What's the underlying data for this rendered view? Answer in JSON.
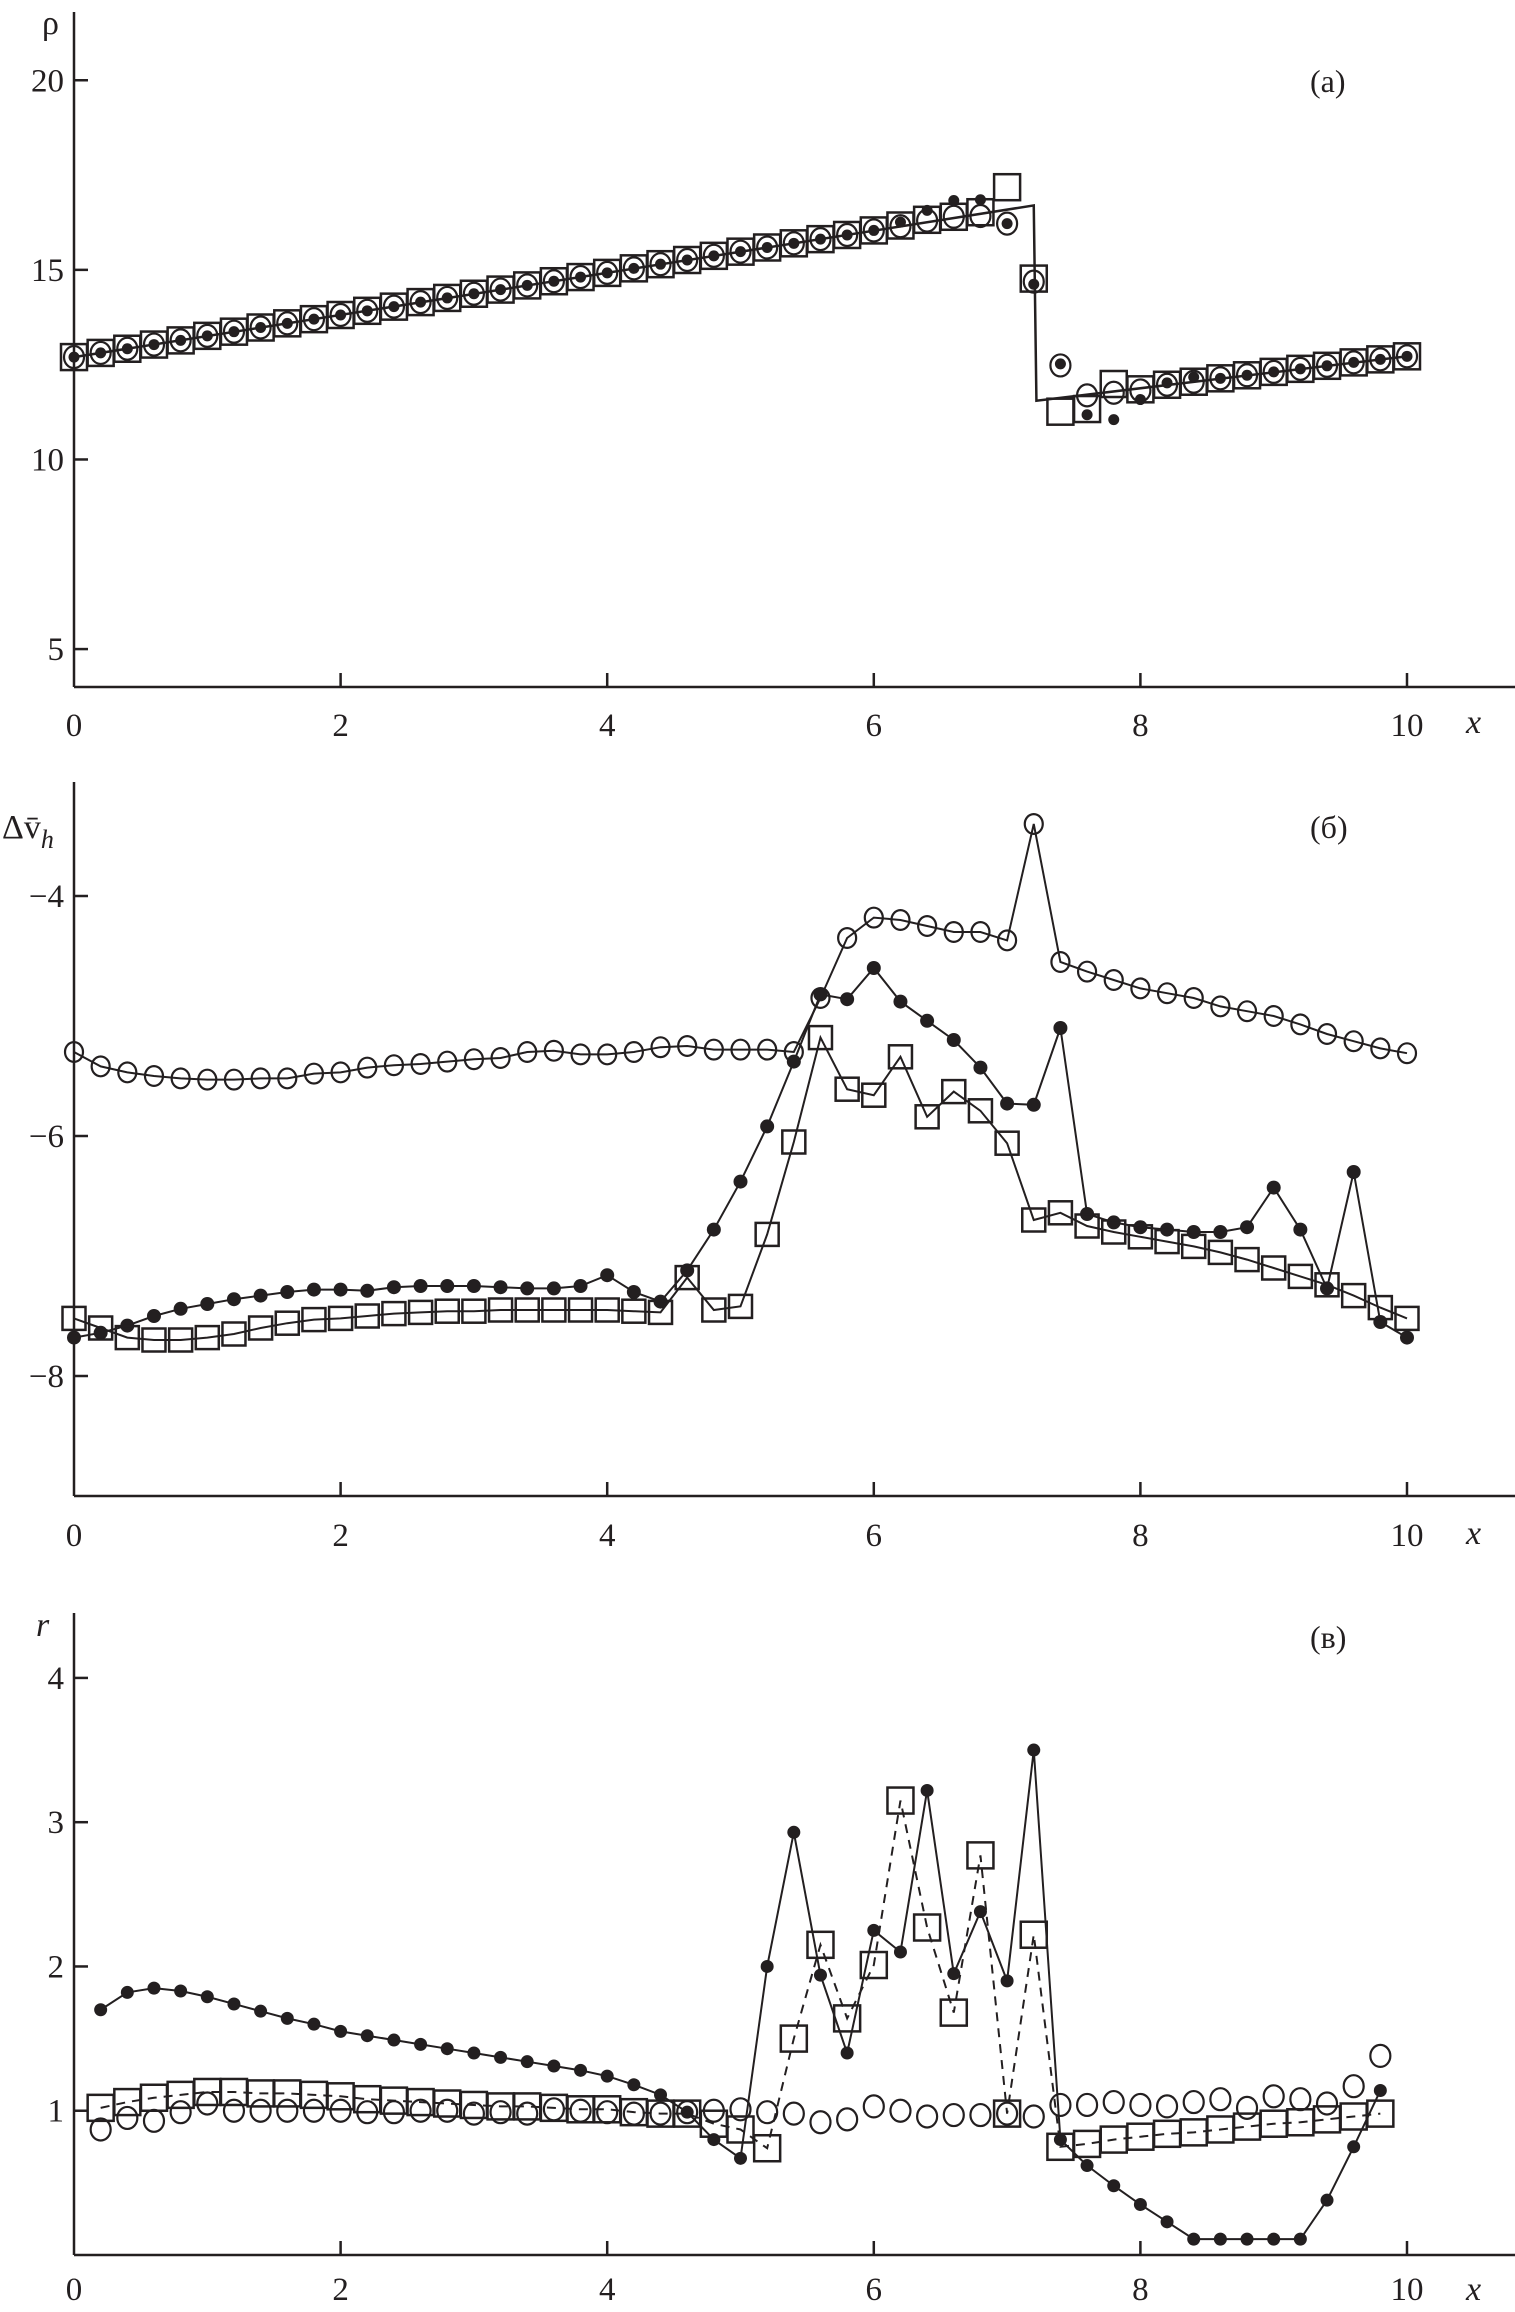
{
  "chart_data": [
    {
      "type": "line",
      "panel_label": "(а)",
      "ylabel": "ρ",
      "xlabel": "x",
      "xlim": [
        0,
        10
      ],
      "ylim": [
        4,
        21.8
      ],
      "xticks": [
        "0",
        "2",
        "4",
        "6",
        "8",
        "10"
      ],
      "xtick_values": [
        0,
        2,
        4,
        6,
        8,
        10
      ],
      "yticks": [
        "5",
        "10",
        "15",
        "20"
      ],
      "ytick_values": [
        5,
        10,
        15,
        20
      ],
      "grid": false,
      "line": {
        "x": [
          0,
          7.2,
          7.22,
          10
        ],
        "y": [
          12.7,
          16.7,
          11.55,
          12.72
        ],
        "style": "solid"
      },
      "x": [
        0,
        0.2,
        0.4,
        0.6,
        0.8,
        1,
        1.2,
        1.4,
        1.6,
        1.8,
        2,
        2.2,
        2.4,
        2.6,
        2.8,
        3,
        3.2,
        3.4,
        3.6,
        3.8,
        4,
        4.2,
        4.4,
        4.6,
        4.8,
        5,
        5.2,
        5.4,
        5.6,
        5.8,
        6,
        6.2,
        6.4,
        6.6,
        6.8,
        7,
        7.2,
        7.4,
        7.6,
        7.8,
        8,
        8.2,
        8.4,
        8.6,
        8.8,
        9,
        9.2,
        9.4,
        9.6,
        9.8,
        10
      ],
      "series": [
        {
          "name": "squares",
          "marker": "square",
          "line": "none",
          "values": [
            12.7,
            12.81,
            12.92,
            13.03,
            13.14,
            13.26,
            13.37,
            13.48,
            13.59,
            13.7,
            13.81,
            13.92,
            14.03,
            14.15,
            14.26,
            14.37,
            14.48,
            14.59,
            14.7,
            14.81,
            14.92,
            15.04,
            15.15,
            15.26,
            15.37,
            15.48,
            15.59,
            15.7,
            15.81,
            15.92,
            16.04,
            16.17,
            16.32,
            16.4,
            16.52,
            17.18,
            14.77,
            11.26,
            11.33,
            11.99,
            11.85,
            11.97,
            12.05,
            12.14,
            12.22,
            12.31,
            12.39,
            12.47,
            12.56,
            12.64,
            12.72
          ]
        },
        {
          "name": "circles",
          "marker": "circle",
          "line": "none",
          "values": [
            12.7,
            12.81,
            12.92,
            13.03,
            13.14,
            13.26,
            13.37,
            13.48,
            13.59,
            13.7,
            13.81,
            13.92,
            14.03,
            14.15,
            14.26,
            14.37,
            14.48,
            14.59,
            14.7,
            14.81,
            14.92,
            15.04,
            15.15,
            15.26,
            15.37,
            15.48,
            15.59,
            15.7,
            15.81,
            15.92,
            16.04,
            16.15,
            16.3,
            16.4,
            16.42,
            16.22,
            14.69,
            12.48,
            11.69,
            11.76,
            11.82,
            11.97,
            12.05,
            12.14,
            12.22,
            12.31,
            12.39,
            12.47,
            12.56,
            12.64,
            12.72
          ]
        },
        {
          "name": "dots",
          "marker": "dot",
          "line": "none",
          "values": [
            12.7,
            12.81,
            12.92,
            13.03,
            13.14,
            13.26,
            13.37,
            13.48,
            13.59,
            13.7,
            13.81,
            13.92,
            14.03,
            14.15,
            14.26,
            14.37,
            14.48,
            14.59,
            14.7,
            14.81,
            14.92,
            15.04,
            15.15,
            15.26,
            15.37,
            15.48,
            15.59,
            15.7,
            15.81,
            15.92,
            16.04,
            16.26,
            16.57,
            16.83,
            16.85,
            16.22,
            14.62,
            12.52,
            11.18,
            11.05,
            11.58,
            12.02,
            12.17,
            12.14,
            12.22,
            12.31,
            12.39,
            12.47,
            12.56,
            12.64,
            12.72
          ]
        }
      ]
    },
    {
      "type": "line",
      "panel_label": "(б)",
      "ylabel": "Δv̄",
      "ylabel_sub": "h",
      "xlabel": "x",
      "xlim": [
        0,
        10
      ],
      "ylim": [
        -9,
        -3.05
      ],
      "xticks": [
        "0",
        "2",
        "4",
        "6",
        "8",
        "10"
      ],
      "xtick_values": [
        0,
        2,
        4,
        6,
        8,
        10
      ],
      "yticks": [
        "−8",
        "−6",
        "−4"
      ],
      "ytick_values": [
        -8,
        -6,
        -4
      ],
      "grid": false,
      "x": [
        0,
        0.2,
        0.4,
        0.6,
        0.8,
        1,
        1.2,
        1.4,
        1.6,
        1.8,
        2,
        2.2,
        2.4,
        2.6,
        2.8,
        3,
        3.2,
        3.4,
        3.6,
        3.8,
        4,
        4.2,
        4.4,
        4.6,
        4.8,
        5,
        5.2,
        5.4,
        5.6,
        5.8,
        6,
        6.2,
        6.4,
        6.6,
        6.8,
        7,
        7.2,
        7.4,
        7.6,
        7.8,
        8,
        8.2,
        8.4,
        8.6,
        8.8,
        9,
        9.2,
        9.4,
        9.6,
        9.8,
        10
      ],
      "series": [
        {
          "name": "circles",
          "marker": "circle",
          "line": "solid",
          "values": [
            -5.3,
            -5.42,
            -5.47,
            -5.5,
            -5.52,
            -5.53,
            -5.53,
            -5.52,
            -5.52,
            -5.48,
            -5.47,
            -5.43,
            -5.41,
            -5.4,
            -5.38,
            -5.36,
            -5.35,
            -5.3,
            -5.29,
            -5.32,
            -5.32,
            -5.3,
            -5.26,
            -5.25,
            -5.28,
            -5.28,
            -5.28,
            -5.3,
            -4.85,
            -4.35,
            -4.18,
            -4.2,
            -4.25,
            -4.3,
            -4.3,
            -4.37,
            -3.4,
            -4.55,
            -4.63,
            -4.7,
            -4.77,
            -4.81,
            -4.85,
            -4.92,
            -4.96,
            -5.0,
            -5.07,
            -5.15,
            -5.21,
            -5.27,
            -5.31
          ]
        },
        {
          "name": "dots",
          "marker": "dot",
          "line": "solid",
          "values": [
            -7.68,
            -7.64,
            -7.58,
            -7.5,
            -7.44,
            -7.4,
            -7.36,
            -7.33,
            -7.3,
            -7.28,
            -7.28,
            -7.29,
            -7.26,
            -7.25,
            -7.25,
            -7.25,
            -7.26,
            -7.27,
            -7.27,
            -7.25,
            -7.16,
            -7.3,
            -7.38,
            -7.12,
            -6.78,
            -6.38,
            -5.92,
            -5.38,
            -4.82,
            -4.86,
            -4.6,
            -4.88,
            -5.04,
            -5.2,
            -5.43,
            -5.73,
            -5.74,
            -5.1,
            -6.65,
            -6.72,
            -6.76,
            -6.78,
            -6.8,
            -6.8,
            -6.76,
            -6.43,
            -6.78,
            -7.27,
            -6.3,
            -7.55,
            -7.68
          ]
        },
        {
          "name": "squares",
          "marker": "square",
          "line": "solid",
          "values": [
            -7.52,
            -7.6,
            -7.68,
            -7.7,
            -7.7,
            -7.68,
            -7.65,
            -7.6,
            -7.56,
            -7.53,
            -7.52,
            -7.5,
            -7.48,
            -7.47,
            -7.46,
            -7.46,
            -7.45,
            -7.45,
            -7.45,
            -7.45,
            -7.45,
            -7.46,
            -7.47,
            -7.18,
            -7.45,
            -7.42,
            -6.82,
            -6.05,
            -5.18,
            -5.61,
            -5.66,
            -5.34,
            -5.84,
            -5.63,
            -5.79,
            -6.06,
            -6.7,
            -6.64,
            -6.75,
            -6.8,
            -6.84,
            -6.88,
            -6.92,
            -6.97,
            -7.03,
            -7.1,
            -7.17,
            -7.24,
            -7.33,
            -7.43,
            -7.52
          ]
        }
      ]
    },
    {
      "type": "line",
      "panel_label": "(в)",
      "ylabel": "r",
      "xlabel": "x",
      "xlim": [
        0,
        10
      ],
      "ylim": [
        0,
        4.45
      ],
      "xticks": [
        "0",
        "2",
        "4",
        "6",
        "8",
        "10"
      ],
      "xtick_values": [
        0,
        2,
        4,
        6,
        8,
        10
      ],
      "yticks": [
        "1",
        "2",
        "3",
        "4"
      ],
      "ytick_values": [
        1,
        2,
        3,
        4
      ],
      "grid": false,
      "x": [
        0.2,
        0.4,
        0.6,
        0.8,
        1,
        1.2,
        1.4,
        1.6,
        1.8,
        2,
        2.2,
        2.4,
        2.6,
        2.8,
        3,
        3.2,
        3.4,
        3.6,
        3.8,
        4,
        4.2,
        4.4,
        4.6,
        4.8,
        5,
        5.2,
        5.4,
        5.6,
        5.8,
        6,
        6.2,
        6.4,
        6.6,
        6.8,
        7,
        7.2,
        7.4,
        7.6,
        7.8,
        8,
        8.2,
        8.4,
        8.6,
        8.8,
        9,
        9.2,
        9.4,
        9.6,
        9.8
      ],
      "series": [
        {
          "name": "circles",
          "marker": "circle",
          "line": "none",
          "values": [
            0.87,
            0.95,
            0.93,
            0.99,
            1.05,
            1.0,
            1.0,
            1.0,
            1.0,
            1.0,
            0.99,
            0.99,
            1.0,
            1.0,
            0.98,
            0.99,
            0.98,
            1.01,
            1.0,
            0.99,
            0.98,
            0.98,
            0.99,
            1.0,
            1.01,
            0.99,
            0.98,
            0.92,
            0.94,
            1.03,
            1.0,
            0.96,
            0.97,
            0.97,
            0.98,
            0.96,
            1.04,
            1.04,
            1.06,
            1.04,
            1.03,
            1.06,
            1.08,
            1.02,
            1.1,
            1.08,
            1.05,
            1.17,
            1.38
          ]
        },
        {
          "name": "dots",
          "marker": "dot",
          "line": "solid",
          "values": [
            1.7,
            1.82,
            1.85,
            1.83,
            1.79,
            1.74,
            1.69,
            1.64,
            1.6,
            1.55,
            1.52,
            1.49,
            1.46,
            1.43,
            1.4,
            1.37,
            1.34,
            1.31,
            1.28,
            1.24,
            1.18,
            1.11,
            0.99,
            0.8,
            0.67,
            2.0,
            2.93,
            1.94,
            1.4,
            2.25,
            2.1,
            3.22,
            1.95,
            2.38,
            1.9,
            3.5,
            0.8,
            0.62,
            0.48,
            0.35,
            0.23,
            0.11,
            0.11,
            0.11,
            0.11,
            0.11,
            0.38,
            0.75,
            1.14
          ]
        },
        {
          "name": "squares",
          "marker": "square",
          "line": "dashed",
          "values": [
            1.02,
            1.06,
            1.09,
            1.11,
            1.13,
            1.13,
            1.12,
            1.12,
            1.11,
            1.1,
            1.08,
            1.07,
            1.06,
            1.05,
            1.04,
            1.03,
            1.03,
            1.02,
            1.01,
            1.01,
            0.99,
            0.98,
            0.98,
            0.91,
            0.87,
            0.74,
            1.5,
            2.15,
            1.64,
            2.01,
            3.15,
            2.27,
            1.68,
            2.77,
            0.98,
            2.22,
            0.75,
            0.77,
            0.8,
            0.82,
            0.84,
            0.85,
            0.87,
            0.89,
            0.91,
            0.92,
            0.94,
            0.96,
            0.98
          ]
        }
      ]
    }
  ]
}
